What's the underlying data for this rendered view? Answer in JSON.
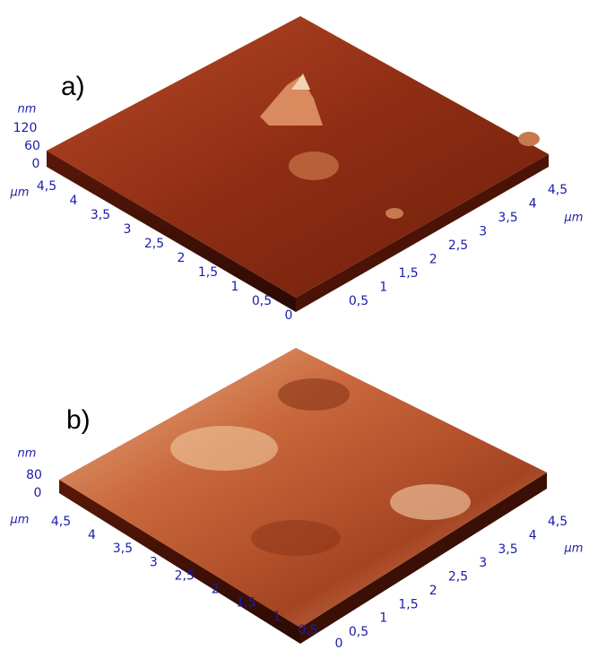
{
  "panels": [
    {
      "label": "a)",
      "z_unit": "nm",
      "z_ticks": [
        "120",
        "60",
        "0"
      ],
      "left_unit": "µm",
      "left_ticks": [
        "4,5",
        "4",
        "3,5",
        "3",
        "2,5",
        "2",
        "1,5",
        "1",
        "0,5",
        "0"
      ],
      "right_ticks": [
        "0,5",
        "1",
        "1,5",
        "2",
        "2,5",
        "3",
        "3,5",
        "4",
        "4,5"
      ],
      "right_unit": "µm"
    },
    {
      "label": "b)",
      "z_unit": "nm",
      "z_ticks": [
        "80",
        "0"
      ],
      "left_unit": "µm",
      "left_ticks": [
        "4,5",
        "4",
        "3,5",
        "3",
        "2,5",
        "2",
        "1,5",
        "1",
        "0,5",
        "0"
      ],
      "right_ticks": [
        "0,5",
        "1",
        "1,5",
        "2",
        "2,5",
        "3",
        "3,5",
        "4",
        "4,5"
      ],
      "right_unit": "µm"
    }
  ]
}
